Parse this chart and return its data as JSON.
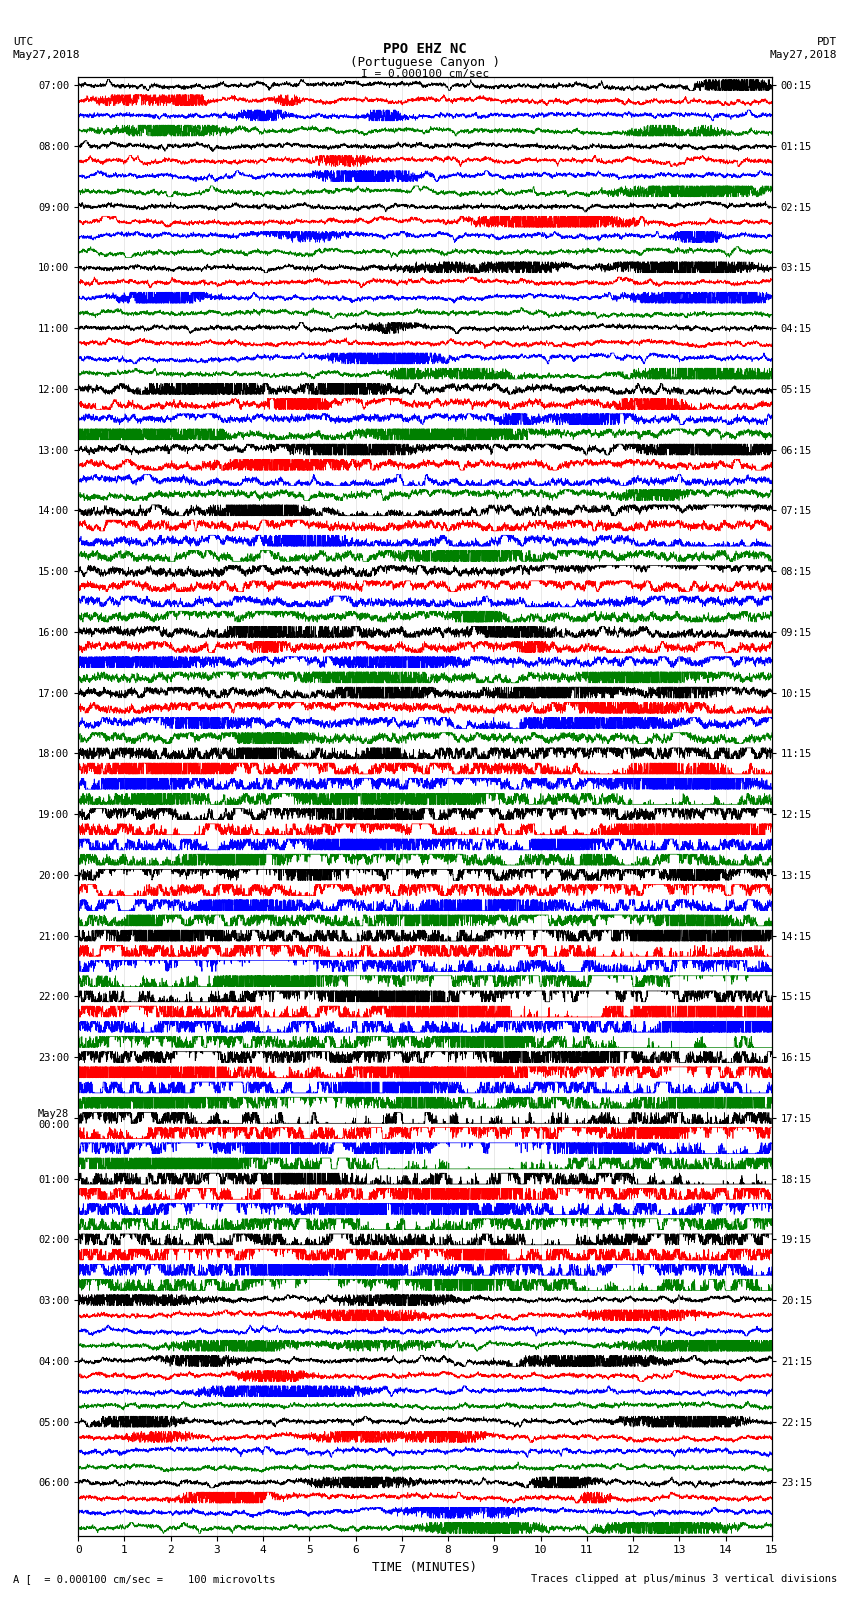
{
  "title_line1": "PPO EHZ NC",
  "title_line2": "(Portuguese Canyon )",
  "scale_label": "I = 0.000100 cm/sec",
  "footer_left": "A [  = 0.000100 cm/sec =    100 microvolts",
  "footer_right": "Traces clipped at plus/minus 3 vertical divisions",
  "xlabel": "TIME (MINUTES)",
  "xlim": [
    0,
    15
  ],
  "xticks": [
    0,
    1,
    2,
    3,
    4,
    5,
    6,
    7,
    8,
    9,
    10,
    11,
    12,
    13,
    14,
    15
  ],
  "colors": [
    "black",
    "red",
    "blue",
    "green"
  ],
  "num_rows": 96,
  "left_labels": [
    "07:00",
    "",
    "",
    "",
    "08:00",
    "",
    "",
    "",
    "09:00",
    "",
    "",
    "",
    "10:00",
    "",
    "",
    "",
    "11:00",
    "",
    "",
    "",
    "12:00",
    "",
    "",
    "",
    "13:00",
    "",
    "",
    "",
    "14:00",
    "",
    "",
    "",
    "15:00",
    "",
    "",
    "",
    "16:00",
    "",
    "",
    "",
    "17:00",
    "",
    "",
    "",
    "18:00",
    "",
    "",
    "",
    "19:00",
    "",
    "",
    "",
    "20:00",
    "",
    "",
    "",
    "21:00",
    "",
    "",
    "",
    "22:00",
    "",
    "",
    "",
    "23:00",
    "",
    "",
    "",
    "May28\n00:00",
    "",
    "",
    "",
    "01:00",
    "",
    "",
    "",
    "02:00",
    "",
    "",
    "",
    "03:00",
    "",
    "",
    "",
    "04:00",
    "",
    "",
    "",
    "05:00",
    "",
    "",
    "",
    "06:00",
    "",
    "",
    ""
  ],
  "right_labels": [
    "00:15",
    "",
    "",
    "",
    "01:15",
    "",
    "",
    "",
    "02:15",
    "",
    "",
    "",
    "03:15",
    "",
    "",
    "",
    "04:15",
    "",
    "",
    "",
    "05:15",
    "",
    "",
    "",
    "06:15",
    "",
    "",
    "",
    "07:15",
    "",
    "",
    "",
    "08:15",
    "",
    "",
    "",
    "09:15",
    "",
    "",
    "",
    "10:15",
    "",
    "",
    "",
    "11:15",
    "",
    "",
    "",
    "12:15",
    "",
    "",
    "",
    "13:15",
    "",
    "",
    "",
    "14:15",
    "",
    "",
    "",
    "15:15",
    "",
    "",
    "",
    "16:15",
    "",
    "",
    "",
    "17:15",
    "",
    "",
    "",
    "18:15",
    "",
    "",
    "",
    "19:15",
    "",
    "",
    "",
    "20:15",
    "",
    "",
    "",
    "21:15",
    "",
    "",
    "",
    "22:15",
    "",
    "",
    "",
    "23:15",
    "",
    "",
    ""
  ],
  "high_amp_rows": [
    44,
    45,
    46,
    47,
    48,
    49,
    50,
    51,
    52,
    53,
    54,
    55,
    56,
    57,
    58,
    59,
    60,
    61,
    62,
    63,
    64,
    65,
    66,
    67,
    68,
    69,
    70,
    71,
    72,
    73,
    74,
    75,
    76,
    77,
    78,
    79
  ],
  "medium_amp_rows": [
    28,
    29,
    30,
    31,
    32,
    33,
    34,
    35,
    36,
    37,
    38,
    39,
    40,
    41,
    42,
    43
  ],
  "spike_rows": [
    20,
    21,
    22,
    23,
    24,
    25,
    26,
    27
  ]
}
